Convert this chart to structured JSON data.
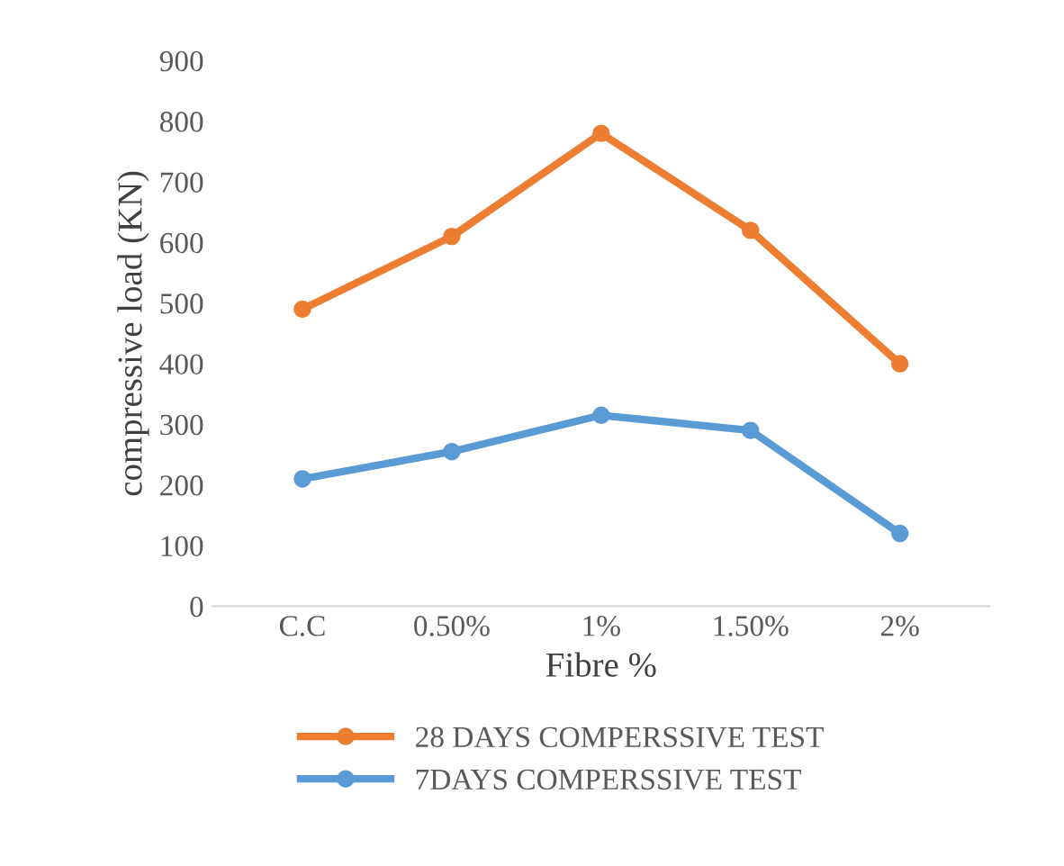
{
  "chart_data": {
    "type": "line",
    "xlabel": "Fibre %",
    "ylabel": "compressive load (KN)",
    "categories": [
      "C.C",
      "0.50%",
      "1%",
      "1.50%",
      "2%"
    ],
    "series": [
      {
        "name": "28 DAYS COMPERSSIVE TEST",
        "color": "#ed7d31",
        "values": [
          490,
          610,
          780,
          620,
          400
        ]
      },
      {
        "name": "7DAYS COMPERSSIVE TEST",
        "color": "#5b9bd5",
        "values": [
          210,
          255,
          315,
          290,
          120
        ]
      }
    ],
    "ylim": [
      0,
      900
    ],
    "yticks": [
      0,
      100,
      200,
      300,
      400,
      500,
      600,
      700,
      800,
      900
    ],
    "grid": false,
    "legend": "bottom",
    "marker": "circle",
    "line_style": "solid"
  }
}
